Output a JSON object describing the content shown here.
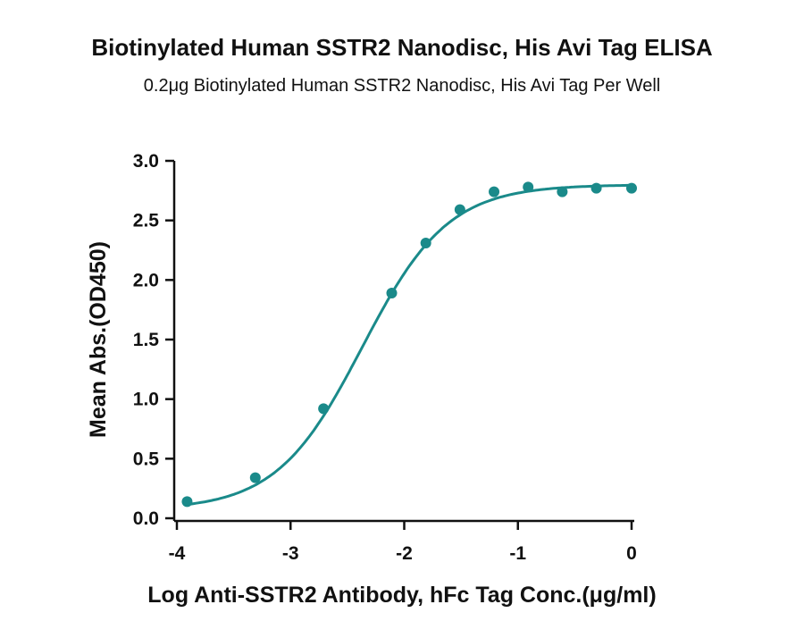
{
  "chart_data": {
    "type": "scatter",
    "title": "Biotinylated Human SSTR2 Nanodisc, His Avi Tag ELISA",
    "subtitle": "0.2μg Biotinylated Human SSTR2 Nanodisc, His Avi Tag Per Well",
    "xlabel": "Log Anti-SSTR2 Antibody, hFc Tag Conc.(μg/ml)",
    "ylabel": "Mean Abs.(OD450)",
    "xlim": [
      -4,
      0
    ],
    "ylim": [
      0,
      3.0
    ],
    "x_ticks": [
      "-4",
      "-3",
      "-2",
      "-1",
      "0"
    ],
    "y_ticks": [
      "0.0",
      "0.5",
      "1.0",
      "1.5",
      "2.0",
      "2.5",
      "3.0"
    ],
    "grid": false,
    "series": [
      {
        "color": "#1a8a8a",
        "points": [
          {
            "x": -3.91,
            "y": 0.14
          },
          {
            "x": -3.31,
            "y": 0.34
          },
          {
            "x": -2.71,
            "y": 0.92
          },
          {
            "x": -2.11,
            "y": 1.89
          },
          {
            "x": -1.81,
            "y": 2.31
          },
          {
            "x": -1.51,
            "y": 2.59
          },
          {
            "x": -1.21,
            "y": 2.74
          },
          {
            "x": -0.91,
            "y": 2.78
          },
          {
            "x": -0.61,
            "y": 2.74
          },
          {
            "x": -0.31,
            "y": 2.77
          },
          {
            "x": 0.0,
            "y": 2.77
          }
        ],
        "fit": {
          "bottom": 0.07,
          "top": 2.8,
          "logEC50": -2.37,
          "hill": 1.15
        }
      }
    ]
  }
}
